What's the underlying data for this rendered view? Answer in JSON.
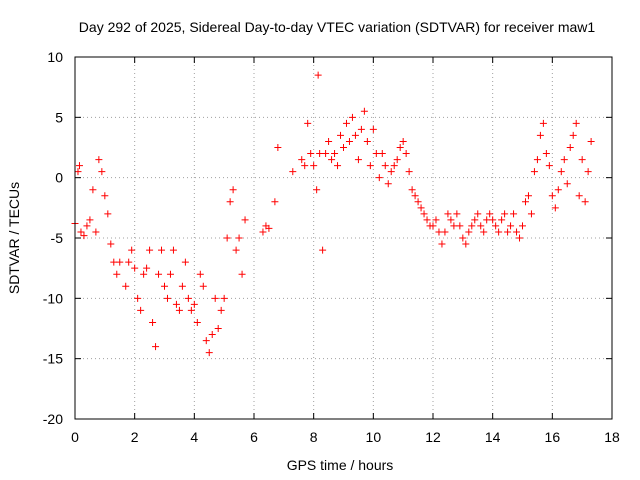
{
  "chart_data": {
    "type": "scatter",
    "title": "Day 292 of 2025, Sidereal Day-to-day VTEC variation (SDTVAR) for receiver maw1",
    "xlabel": "GPS time / hours",
    "ylabel": "SDTVAR / TECUs",
    "xlim": [
      0,
      18
    ],
    "ylim": [
      -20,
      10
    ],
    "xticks": [
      0,
      2,
      4,
      6,
      8,
      10,
      12,
      14,
      16,
      18
    ],
    "yticks": [
      -20,
      -15,
      -10,
      -5,
      0,
      5,
      10
    ],
    "xtick_labels": [
      "0",
      "2",
      "4",
      "6",
      "8",
      "10",
      "12",
      "14",
      "16",
      "18"
    ],
    "ytick_labels": [
      "-20",
      "-15",
      "-10",
      "-5",
      "0",
      "5",
      "10"
    ],
    "grid": true,
    "marker": "+",
    "color": "#ff0000",
    "series": [
      {
        "name": "SDTVAR",
        "points": [
          [
            0.0,
            -3.8
          ],
          [
            0.1,
            0.5
          ],
          [
            0.15,
            1.0
          ],
          [
            0.2,
            -4.5
          ],
          [
            0.3,
            -4.8
          ],
          [
            0.4,
            -4.0
          ],
          [
            0.5,
            -3.5
          ],
          [
            0.6,
            -1.0
          ],
          [
            0.7,
            -4.5
          ],
          [
            0.8,
            1.5
          ],
          [
            0.9,
            0.5
          ],
          [
            1.0,
            -1.5
          ],
          [
            1.1,
            -3.0
          ],
          [
            1.2,
            -5.5
          ],
          [
            1.3,
            -7.0
          ],
          [
            1.4,
            -8.0
          ],
          [
            1.5,
            -7.0
          ],
          [
            1.7,
            -9.0
          ],
          [
            1.8,
            -7.0
          ],
          [
            1.9,
            -6.0
          ],
          [
            2.0,
            -7.5
          ],
          [
            2.1,
            -10.0
          ],
          [
            2.2,
            -11.0
          ],
          [
            2.3,
            -8.0
          ],
          [
            2.4,
            -7.5
          ],
          [
            2.5,
            -6.0
          ],
          [
            2.6,
            -12.0
          ],
          [
            2.7,
            -14.0
          ],
          [
            2.8,
            -8.0
          ],
          [
            2.9,
            -6.0
          ],
          [
            3.0,
            -9.0
          ],
          [
            3.1,
            -10.0
          ],
          [
            3.2,
            -8.0
          ],
          [
            3.3,
            -6.0
          ],
          [
            3.4,
            -10.5
          ],
          [
            3.5,
            -11.0
          ],
          [
            3.6,
            -9.0
          ],
          [
            3.7,
            -7.0
          ],
          [
            3.8,
            -10.0
          ],
          [
            3.9,
            -11.0
          ],
          [
            4.0,
            -10.5
          ],
          [
            4.1,
            -12.0
          ],
          [
            4.2,
            -8.0
          ],
          [
            4.3,
            -9.0
          ],
          [
            4.4,
            -13.5
          ],
          [
            4.5,
            -14.5
          ],
          [
            4.6,
            -13.0
          ],
          [
            4.7,
            -10.0
          ],
          [
            4.8,
            -12.5
          ],
          [
            4.9,
            -11.0
          ],
          [
            5.0,
            -10.0
          ],
          [
            5.1,
            -5.0
          ],
          [
            5.2,
            -2.0
          ],
          [
            5.3,
            -1.0
          ],
          [
            5.4,
            -6.0
          ],
          [
            5.5,
            -5.0
          ],
          [
            5.6,
            -8.0
          ],
          [
            5.7,
            -3.5
          ],
          [
            6.3,
            -4.5
          ],
          [
            6.4,
            -4.0
          ],
          [
            6.5,
            -4.2
          ],
          [
            6.7,
            -2.0
          ],
          [
            6.8,
            2.5
          ],
          [
            7.3,
            0.5
          ],
          [
            7.6,
            1.5
          ],
          [
            7.7,
            1.0
          ],
          [
            7.8,
            4.5
          ],
          [
            7.9,
            2.0
          ],
          [
            8.0,
            1.0
          ],
          [
            8.1,
            -1.0
          ],
          [
            8.15,
            8.5
          ],
          [
            8.2,
            2.0
          ],
          [
            8.3,
            -6.0
          ],
          [
            8.4,
            2.0
          ],
          [
            8.5,
            3.0
          ],
          [
            8.6,
            1.5
          ],
          [
            8.7,
            2.0
          ],
          [
            8.8,
            1.0
          ],
          [
            8.9,
            3.5
          ],
          [
            9.0,
            2.5
          ],
          [
            9.1,
            4.5
          ],
          [
            9.2,
            3.0
          ],
          [
            9.3,
            5.0
          ],
          [
            9.4,
            3.5
          ],
          [
            9.5,
            1.5
          ],
          [
            9.6,
            4.0
          ],
          [
            9.7,
            5.5
          ],
          [
            9.8,
            3.0
          ],
          [
            9.9,
            1.0
          ],
          [
            10.0,
            4.0
          ],
          [
            10.1,
            2.0
          ],
          [
            10.2,
            0.0
          ],
          [
            10.3,
            2.0
          ],
          [
            10.4,
            1.0
          ],
          [
            10.5,
            -0.5
          ],
          [
            10.6,
            0.5
          ],
          [
            10.7,
            1.0
          ],
          [
            10.8,
            1.5
          ],
          [
            10.9,
            2.5
          ],
          [
            11.0,
            3.0
          ],
          [
            11.1,
            2.0
          ],
          [
            11.2,
            0.5
          ],
          [
            11.3,
            -1.0
          ],
          [
            11.4,
            -1.5
          ],
          [
            11.5,
            -2.0
          ],
          [
            11.6,
            -2.5
          ],
          [
            11.7,
            -3.0
          ],
          [
            11.8,
            -3.5
          ],
          [
            11.9,
            -4.0
          ],
          [
            12.0,
            -4.0
          ],
          [
            12.1,
            -3.5
          ],
          [
            12.2,
            -4.5
          ],
          [
            12.3,
            -5.5
          ],
          [
            12.4,
            -4.5
          ],
          [
            12.5,
            -3.0
          ],
          [
            12.6,
            -3.5
          ],
          [
            12.7,
            -4.0
          ],
          [
            12.8,
            -3.0
          ],
          [
            12.9,
            -4.0
          ],
          [
            13.0,
            -5.0
          ],
          [
            13.1,
            -5.5
          ],
          [
            13.2,
            -4.5
          ],
          [
            13.3,
            -4.0
          ],
          [
            13.4,
            -3.5
          ],
          [
            13.5,
            -3.0
          ],
          [
            13.6,
            -4.0
          ],
          [
            13.7,
            -4.5
          ],
          [
            13.8,
            -3.5
          ],
          [
            13.9,
            -3.0
          ],
          [
            14.0,
            -3.5
          ],
          [
            14.1,
            -4.0
          ],
          [
            14.2,
            -4.5
          ],
          [
            14.3,
            -3.5
          ],
          [
            14.4,
            -3.0
          ],
          [
            14.5,
            -4.5
          ],
          [
            14.6,
            -4.0
          ],
          [
            14.7,
            -3.0
          ],
          [
            14.8,
            -4.5
          ],
          [
            14.9,
            -5.0
          ],
          [
            15.0,
            -4.0
          ],
          [
            15.1,
            -2.0
          ],
          [
            15.2,
            -1.5
          ],
          [
            15.3,
            -3.0
          ],
          [
            15.4,
            0.5
          ],
          [
            15.5,
            1.5
          ],
          [
            15.6,
            3.5
          ],
          [
            15.7,
            4.5
          ],
          [
            15.8,
            2.0
          ],
          [
            15.9,
            1.0
          ],
          [
            16.0,
            -1.5
          ],
          [
            16.1,
            -2.5
          ],
          [
            16.2,
            -1.0
          ],
          [
            16.3,
            0.5
          ],
          [
            16.4,
            1.5
          ],
          [
            16.5,
            -0.5
          ],
          [
            16.6,
            2.5
          ],
          [
            16.7,
            3.5
          ],
          [
            16.8,
            4.5
          ],
          [
            16.9,
            -1.5
          ],
          [
            17.0,
            1.5
          ],
          [
            17.1,
            -2.0
          ],
          [
            17.2,
            0.5
          ],
          [
            17.3,
            3.0
          ]
        ]
      }
    ]
  }
}
